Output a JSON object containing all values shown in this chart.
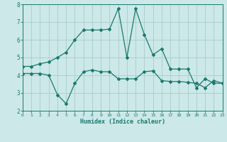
{
  "title": "",
  "xlabel": "Humidex (Indice chaleur)",
  "bg_color": "#cce8e8",
  "grid_color": "#aacccc",
  "line_color": "#1a7a6e",
  "tick_color": "#1a7a6e",
  "line1_x": [
    0,
    1,
    2,
    3,
    4,
    5,
    6,
    7,
    8,
    9,
    10,
    11,
    12,
    13,
    14,
    15,
    16,
    17,
    18,
    19,
    20,
    21,
    22,
    23
  ],
  "line1_y": [
    4.5,
    4.5,
    4.65,
    4.75,
    5.0,
    5.3,
    6.0,
    6.55,
    6.55,
    6.55,
    6.6,
    7.75,
    5.0,
    7.75,
    6.3,
    5.15,
    5.5,
    4.35,
    4.35,
    4.35,
    3.3,
    3.8,
    3.55,
    3.55
  ],
  "line2_x": [
    0,
    1,
    2,
    3,
    4,
    5,
    6,
    7,
    8,
    9,
    10,
    11,
    12,
    13,
    14,
    15,
    16,
    17,
    18,
    19,
    20,
    21,
    22,
    23
  ],
  "line2_y": [
    4.1,
    4.1,
    4.1,
    4.0,
    2.9,
    2.4,
    3.55,
    4.2,
    4.3,
    4.2,
    4.2,
    3.8,
    3.8,
    3.8,
    4.2,
    4.25,
    3.7,
    3.65,
    3.65,
    3.6,
    3.55,
    3.3,
    3.7,
    3.55
  ],
  "xlim": [
    0,
    23
  ],
  "ylim": [
    2,
    8
  ],
  "yticks": [
    2,
    3,
    4,
    5,
    6,
    7,
    8
  ],
  "xticks": [
    0,
    1,
    2,
    3,
    4,
    5,
    6,
    7,
    8,
    9,
    10,
    11,
    12,
    13,
    14,
    15,
    16,
    17,
    18,
    19,
    20,
    21,
    22,
    23
  ]
}
